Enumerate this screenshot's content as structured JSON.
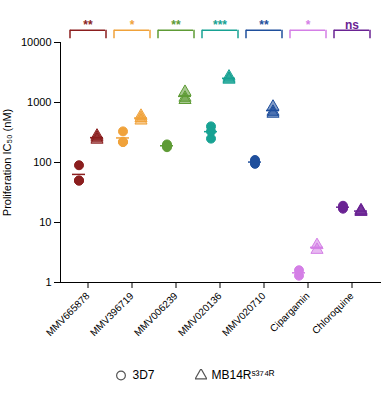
{
  "chart_data": {
    "type": "scatter",
    "categories": [
      "MMV665878",
      "MMV396719",
      "MMV006239",
      "MMV020136",
      "MMV020710",
      "Cipargamin",
      "Chloroquine"
    ],
    "colors": [
      "#8b1e1e",
      "#f0a23a",
      "#5e9b35",
      "#17a293",
      "#1f4f9c",
      "#d47fe6",
      "#6a2393"
    ],
    "series": [
      {
        "name": "3D7",
        "marker": "circle",
        "values": [
          [
            90,
            50,
            50
          ],
          [
            330,
            220,
            220
          ],
          [
            200,
            190,
            180
          ],
          [
            400,
            250,
            330
          ],
          [
            110,
            95,
            100
          ],
          [
            1.3,
            1.6
          ],
          [
            17,
            18,
            19
          ]
        ]
      },
      {
        "name": "MB14Rˢ³⁷⁴ᴿ",
        "marker": "triangle",
        "values": [
          [
            280,
            240,
            260
          ],
          [
            550,
            500,
            600
          ],
          [
            1500,
            1100,
            1200
          ],
          [
            2700,
            2500,
            2400
          ],
          [
            850,
            650,
            700
          ],
          [
            3.5,
            4.2
          ],
          [
            16,
            15,
            15.5
          ]
        ]
      }
    ],
    "annotations": [
      "**",
      "*",
      "**",
      "***",
      "**",
      "*",
      "ns"
    ],
    "y_label": "Proliferation IC₅₀ (nM)",
    "log": "y",
    "ylim": [
      1,
      10000
    ],
    "yticks": [
      1,
      10,
      100,
      1000,
      10000
    ],
    "legend": "bottom"
  }
}
